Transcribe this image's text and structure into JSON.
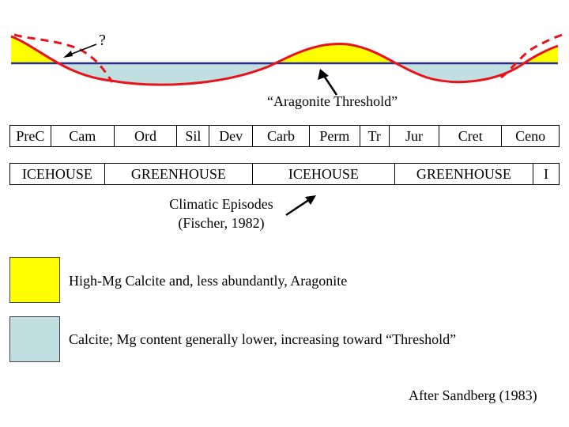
{
  "colors": {
    "high_mg": "#ffff00",
    "calcite": "#bfdfe0",
    "curve": "#e8141c",
    "threshold_line": "#2a2f8c"
  },
  "labels": {
    "question_mark": "?",
    "aragonite_threshold": "“Aragonite Threshold”",
    "climatic_episodes_line1": "Climatic Episodes",
    "climatic_episodes_line2": "(Fischer, 1982)",
    "attribution": "After Sandberg (1983)"
  },
  "periods": [
    "PreC",
    "Cam",
    "Ord",
    "Sil",
    "Dev",
    "Carb",
    "Perm",
    "Tr",
    "Jur",
    "Cret",
    "Ceno"
  ],
  "climate": [
    "ICEHOUSE",
    "GREENHOUSE",
    "ICEHOUSE",
    "GREENHOUSE",
    "I"
  ],
  "legend": [
    {
      "label": "High-Mg Calcite and, less abundantly, Aragonite",
      "color_key": "high_mg"
    },
    {
      "label": "Calcite; Mg content generally lower, increasing toward “Threshold”",
      "color_key": "calcite"
    }
  ]
}
